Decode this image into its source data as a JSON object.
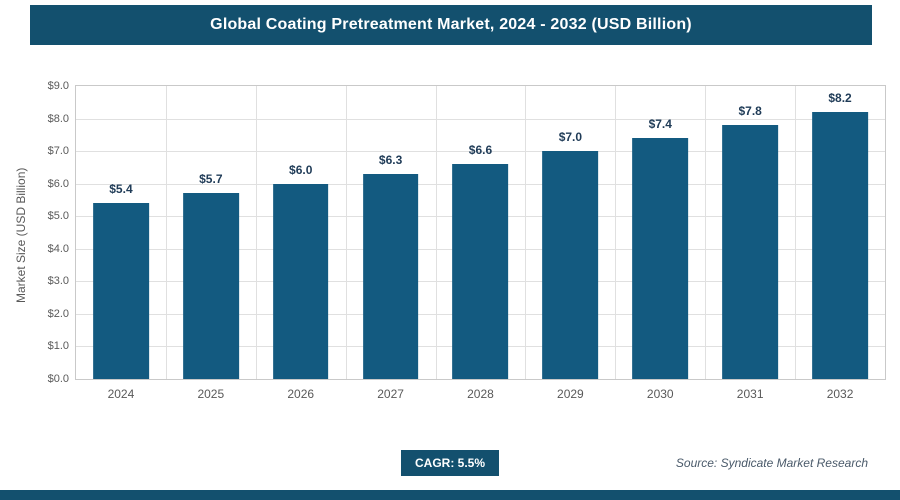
{
  "header": {
    "title": "Global Coating Pretreatment Market, 2024 - 2032 (USD Billion)"
  },
  "chart_data": {
    "type": "bar",
    "title": "Global Coating Pretreatment Market, 2024 - 2032 (USD Billion)",
    "categories": [
      "2024",
      "2025",
      "2026",
      "2027",
      "2028",
      "2029",
      "2030",
      "2031",
      "2032"
    ],
    "values": [
      5.4,
      5.7,
      6.0,
      6.3,
      6.6,
      7.0,
      7.4,
      7.8,
      8.2
    ],
    "value_labels": [
      "$5.4",
      "$5.7",
      "$6.0",
      "$6.3",
      "$6.6",
      "$7.0",
      "$7.4",
      "$7.8",
      "$8.2"
    ],
    "xlabel": "",
    "ylabel": "Market Size (USD Billion)",
    "ylim": [
      0,
      9
    ],
    "ytick_step": 1,
    "ytick_labels": [
      "$0.0",
      "$1.0",
      "$2.0",
      "$3.0",
      "$4.0",
      "$5.0",
      "$6.0",
      "$7.0",
      "$8.0",
      "$9.0"
    ],
    "grid": "on",
    "legend": "none",
    "bar_color": "#135a80"
  },
  "footer": {
    "cagr_label": "CAGR: 5.5%",
    "source": "Source: Syndicate Market Research"
  }
}
